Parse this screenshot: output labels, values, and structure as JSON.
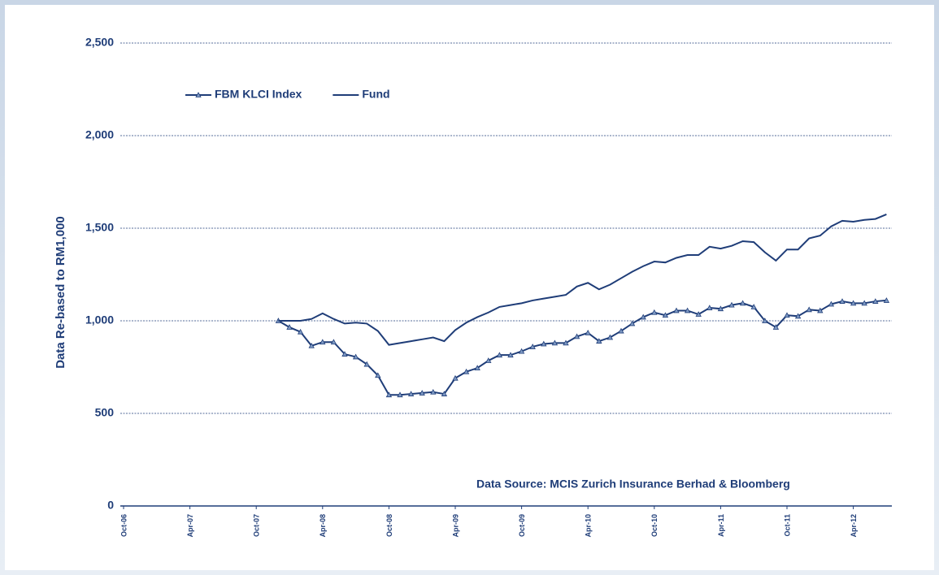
{
  "chart_data": {
    "type": "line",
    "y_label": "Data Re-based to RM1,000",
    "annotation": "Data Source: MCIS Zurich Insurance Berhad & Bloomberg",
    "categories": [
      "Oct-06",
      null,
      null,
      null,
      null,
      null,
      "Apr-07",
      null,
      null,
      null,
      null,
      null,
      "Oct-07",
      null,
      null,
      null,
      null,
      null,
      "Apr-08",
      null,
      null,
      null,
      null,
      null,
      "Oct-08",
      null,
      null,
      null,
      null,
      null,
      "Apr-09",
      null,
      null,
      null,
      null,
      null,
      "Oct-09",
      null,
      null,
      null,
      null,
      null,
      "Apr-10",
      null,
      null,
      null,
      null,
      null,
      "Oct-10",
      null,
      null,
      null,
      null,
      null,
      "Apr-11",
      null,
      null,
      null,
      null,
      null,
      "Oct-11",
      null,
      null,
      null,
      null,
      null,
      "Apr-12",
      null,
      null,
      null
    ],
    "series": [
      {
        "name": "FBM KLCI Index",
        "color": "#1f3d78",
        "marker": "triangle",
        "values": [
          null,
          null,
          null,
          null,
          null,
          null,
          null,
          null,
          null,
          null,
          null,
          null,
          null,
          null,
          1000,
          965,
          940,
          865,
          885,
          885,
          820,
          805,
          765,
          705,
          600,
          600,
          605,
          610,
          615,
          605,
          690,
          725,
          745,
          785,
          815,
          815,
          835,
          860,
          875,
          880,
          880,
          915,
          935,
          890,
          910,
          945,
          985,
          1020,
          1045,
          1030,
          1055,
          1055,
          1035,
          1070,
          1065,
          1085,
          1095,
          1075,
          1000,
          965,
          1030,
          1025,
          1060,
          1055,
          1090,
          1105,
          1095,
          1095,
          1105,
          1110
        ]
      },
      {
        "name": "Fund",
        "color": "#1f3d78",
        "values": [
          null,
          null,
          null,
          null,
          null,
          null,
          null,
          null,
          null,
          null,
          null,
          null,
          null,
          null,
          1000,
          1000,
          1000,
          1010,
          1040,
          1010,
          985,
          990,
          985,
          945,
          870,
          880,
          890,
          900,
          910,
          890,
          950,
          990,
          1020,
          1045,
          1075,
          1085,
          1095,
          1110,
          1120,
          1130,
          1140,
          1185,
          1205,
          1170,
          1195,
          1230,
          1265,
          1295,
          1320,
          1315,
          1340,
          1355,
          1355,
          1400,
          1390,
          1405,
          1430,
          1425,
          1370,
          1325,
          1385,
          1385,
          1445,
          1460,
          1510,
          1540,
          1535,
          1545,
          1550,
          1575
        ]
      }
    ],
    "ylim": [
      0,
      2500
    ],
    "yticks": [
      0,
      500,
      {
        "value": 1000,
        "label": "1,000"
      },
      {
        "value": 1500,
        "label": "1,500"
      },
      {
        "value": 2000,
        "label": "2,000"
      },
      {
        "value": 2500,
        "label": "2,500"
      }
    ],
    "grid": true,
    "legend": "top-left"
  }
}
